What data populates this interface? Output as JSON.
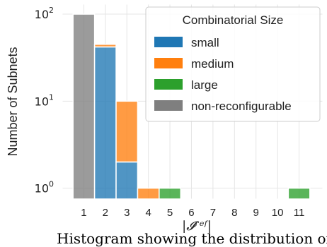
{
  "chart_data": {
    "type": "bar",
    "stacked": true,
    "categories": [
      "1",
      "2",
      "3",
      "4",
      "5",
      "6",
      "7",
      "8",
      "9",
      "10",
      "11"
    ],
    "series": [
      {
        "name": "small",
        "color": "#1f77b4",
        "values": [
          0,
          42,
          2,
          0,
          0,
          0,
          0,
          0,
          0,
          0,
          0
        ]
      },
      {
        "name": "medium",
        "color": "#ff7f0e",
        "values": [
          0,
          3,
          8,
          1,
          0,
          0,
          0,
          0,
          0,
          0,
          0
        ]
      },
      {
        "name": "large",
        "color": "#2ca02c",
        "values": [
          0,
          0,
          0,
          0,
          1,
          0,
          0,
          0,
          0,
          0,
          1
        ]
      },
      {
        "name": "non-reconfigurable",
        "color": "#7f7f7f",
        "values": [
          100,
          0,
          0,
          0,
          0,
          0,
          0,
          0,
          0,
          0,
          0
        ]
      }
    ],
    "xlabel": "|𝓘ʳᵉᶠ|",
    "ylabel": "Number of Subnets",
    "yscale": "log",
    "ylim": [
      0.75,
      130
    ],
    "yticks": [
      {
        "value": 1,
        "base": "10",
        "exp": "0"
      },
      {
        "value": 10,
        "base": "10",
        "exp": "1"
      },
      {
        "value": 100,
        "base": "10",
        "exp": "2"
      }
    ],
    "grid": true,
    "legend": {
      "title": "Combinatorial Size",
      "placement": "top-right"
    }
  },
  "caption": "Histogram showing the distribution of"
}
